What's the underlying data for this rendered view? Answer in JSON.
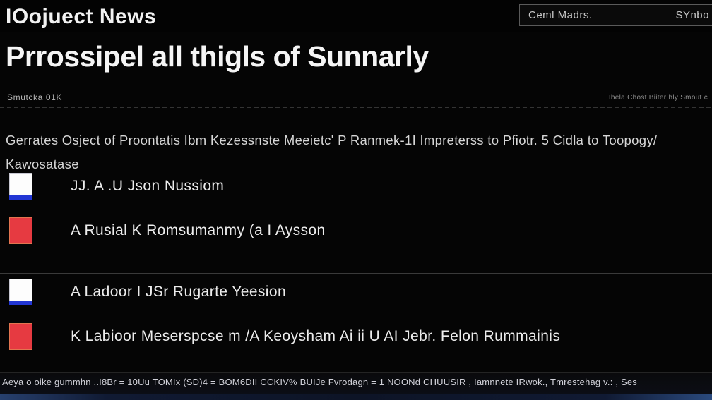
{
  "header": {
    "title": "IOojuect News",
    "badge": {
      "left_label": "Ceml Madrs.",
      "right_label": "SYnbo"
    }
  },
  "page": {
    "heading": "Prrossipel all thigls of Sunnarly",
    "meta_left": "Smutcka 01K",
    "meta_right": "Ibela Chost Biiter hly Smout c",
    "description_line1": "Gerrates Osject of Proontatis Ibm Kezessnste Meeietc' P Ranmek-1I Impreterss to Pfiotr. 5 Cidla to Toopogy/",
    "description_line2": "Kawosatase"
  },
  "legend": {
    "items": [
      {
        "label": "JJ. A .U Json Nussiom",
        "swatch": "white-blue"
      },
      {
        "label": "A Rusial K Romsumanmy (a I Aysson",
        "swatch": "red"
      },
      {
        "label": "A Ladoor I JSr Rugarte Yeesion",
        "swatch": "white-blue"
      },
      {
        "label": "K Labioor Meserspcse m /A Keoysham Ai ii U AI Jebr. Felon Rummainis",
        "swatch": "red"
      }
    ]
  },
  "footer": {
    "status_text": "Aeya o oike gummhn ..I8Br = 10Uu TOMIx (SD)4 = BOM6DII CCKIV% BUIJe Fvrodagn = 1 NOONd CHUUSIR , Iamnnete IRwok., Tmrestehag v.: , Ses"
  },
  "colors": {
    "background": "#050505",
    "accent_blue": "#2236d4",
    "accent_red": "#e63a41",
    "footer_strip_blue": "#27406e",
    "divider_gray": "#3a3a3a"
  }
}
